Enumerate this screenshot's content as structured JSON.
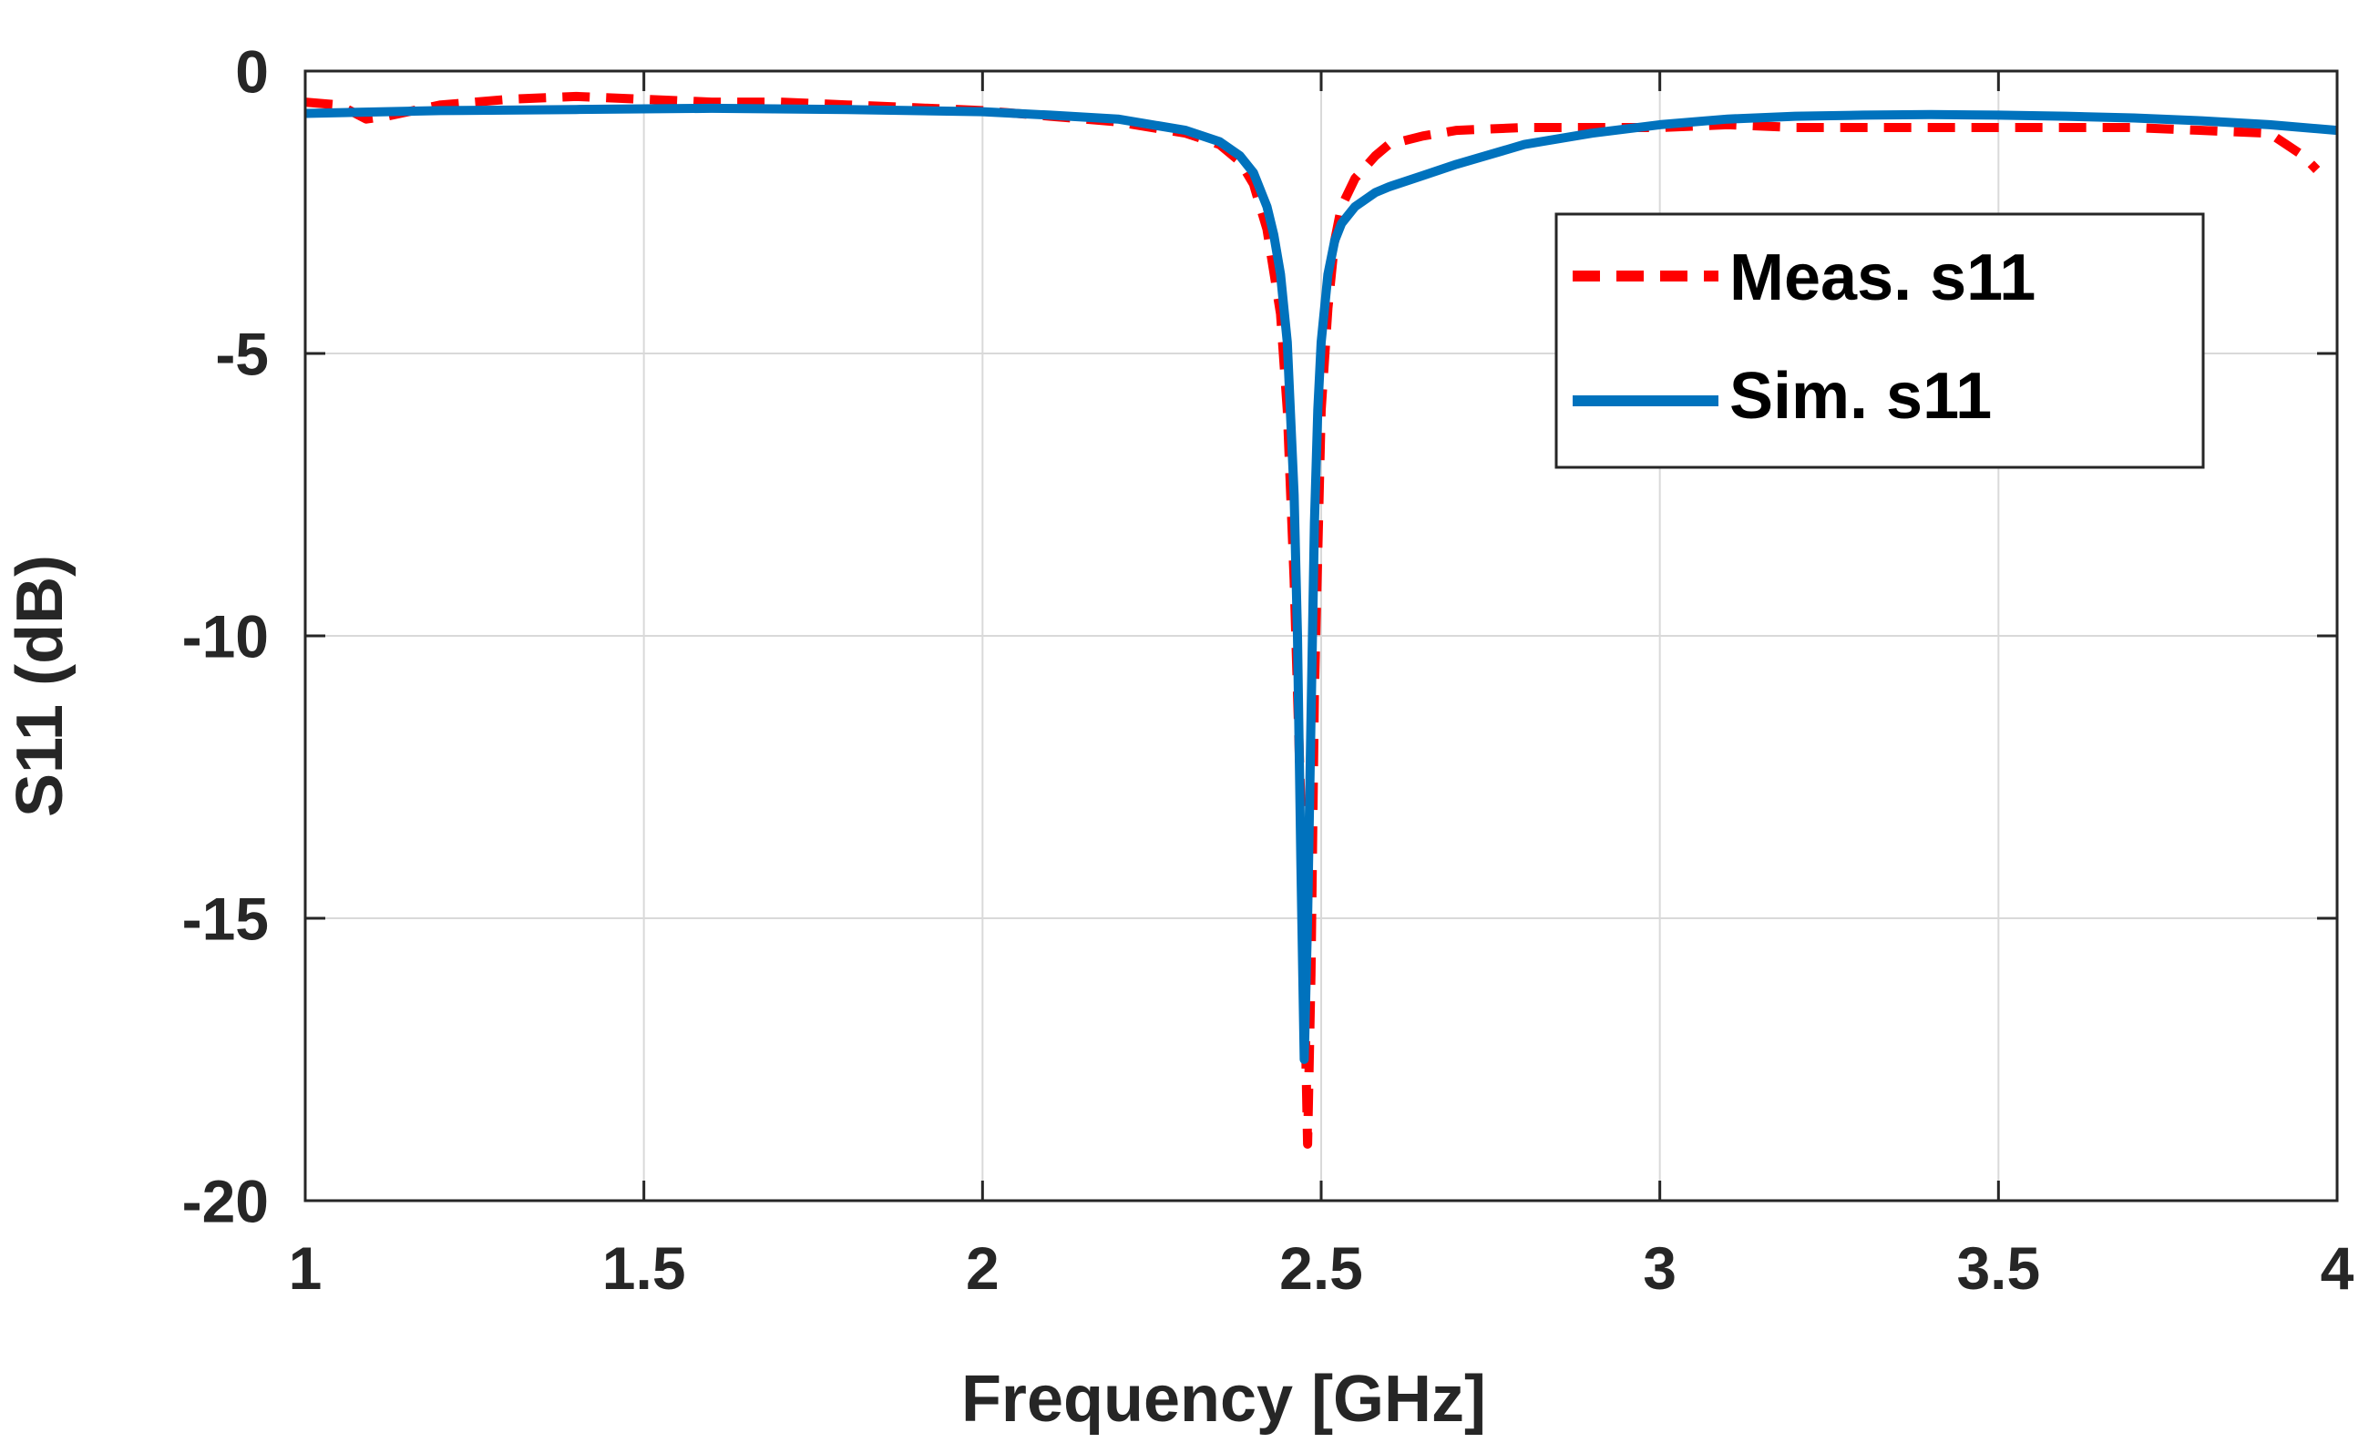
{
  "colors": {
    "measured": "#ff0000",
    "simulated": "#0072bd",
    "grid": "#d9d9d9",
    "axis": "#262626",
    "background": "#ffffff"
  },
  "chart_data": {
    "type": "line",
    "title": "",
    "xlabel": "Frequency [GHz]",
    "ylabel": "S11 (dB)",
    "xlim": [
      1,
      4
    ],
    "ylim": [
      -20,
      0
    ],
    "xticks": [
      1,
      1.5,
      2,
      2.5,
      3,
      3.5,
      4
    ],
    "xtick_labels": [
      "1",
      "1.5",
      "2",
      "2.5",
      "3",
      "3.5",
      "4"
    ],
    "yticks": [
      0,
      -5,
      -10,
      -15,
      -20
    ],
    "ytick_labels": [
      "0",
      "-5",
      "-10",
      "-15",
      "-20"
    ],
    "grid": true,
    "legend_position": "top-right",
    "series": [
      {
        "name": "Meas. s11",
        "style": "dashed",
        "x": [
          1.0,
          1.05,
          1.09,
          1.12,
          1.2,
          1.3,
          1.4,
          1.5,
          1.6,
          1.7,
          1.8,
          1.9,
          2.0,
          2.1,
          2.2,
          2.3,
          2.35,
          2.38,
          2.4,
          2.42,
          2.44,
          2.45,
          2.46,
          2.47,
          2.475,
          2.48,
          2.485,
          2.49,
          2.5,
          2.51,
          2.52,
          2.53,
          2.55,
          2.58,
          2.6,
          2.65,
          2.7,
          2.8,
          2.9,
          3.0,
          3.1,
          3.2,
          3.3,
          3.4,
          3.5,
          3.6,
          3.7,
          3.8,
          3.9,
          3.95,
          3.97
        ],
        "values": [
          -0.55,
          -0.6,
          -0.85,
          -0.8,
          -0.6,
          -0.5,
          -0.45,
          -0.5,
          -0.55,
          -0.55,
          -0.6,
          -0.65,
          -0.7,
          -0.8,
          -0.9,
          -1.1,
          -1.3,
          -1.6,
          -2.0,
          -2.8,
          -4.3,
          -6.0,
          -9.0,
          -13.0,
          -16.0,
          -19.0,
          -16.0,
          -11.0,
          -6.0,
          -4.2,
          -3.0,
          -2.4,
          -1.9,
          -1.5,
          -1.3,
          -1.15,
          -1.05,
          -1.0,
          -1.0,
          -1.0,
          -0.95,
          -1.0,
          -1.0,
          -1.0,
          -1.0,
          -1.0,
          -1.0,
          -1.05,
          -1.1,
          -1.5,
          -1.75
        ]
      },
      {
        "name": "Sim. s11",
        "style": "solid",
        "x": [
          1.0,
          1.2,
          1.4,
          1.6,
          1.8,
          2.0,
          2.1,
          2.2,
          2.3,
          2.35,
          2.38,
          2.4,
          2.42,
          2.43,
          2.44,
          2.45,
          2.46,
          2.465,
          2.47,
          2.475,
          2.48,
          2.485,
          2.49,
          2.495,
          2.5,
          2.51,
          2.52,
          2.53,
          2.55,
          2.58,
          2.6,
          2.65,
          2.7,
          2.8,
          2.9,
          3.0,
          3.1,
          3.2,
          3.3,
          3.4,
          3.5,
          3.6,
          3.7,
          3.8,
          3.9,
          4.0
        ],
        "values": [
          -0.75,
          -0.7,
          -0.68,
          -0.66,
          -0.68,
          -0.72,
          -0.78,
          -0.85,
          -1.05,
          -1.25,
          -1.5,
          -1.8,
          -2.4,
          -2.9,
          -3.6,
          -4.8,
          -7.5,
          -10.0,
          -14.0,
          -17.5,
          -15.0,
          -11.5,
          -8.0,
          -6.0,
          -4.8,
          -3.6,
          -3.0,
          -2.7,
          -2.4,
          -2.15,
          -2.05,
          -1.85,
          -1.65,
          -1.3,
          -1.1,
          -0.95,
          -0.85,
          -0.8,
          -0.78,
          -0.77,
          -0.78,
          -0.8,
          -0.83,
          -0.88,
          -0.95,
          -1.05
        ]
      }
    ]
  }
}
